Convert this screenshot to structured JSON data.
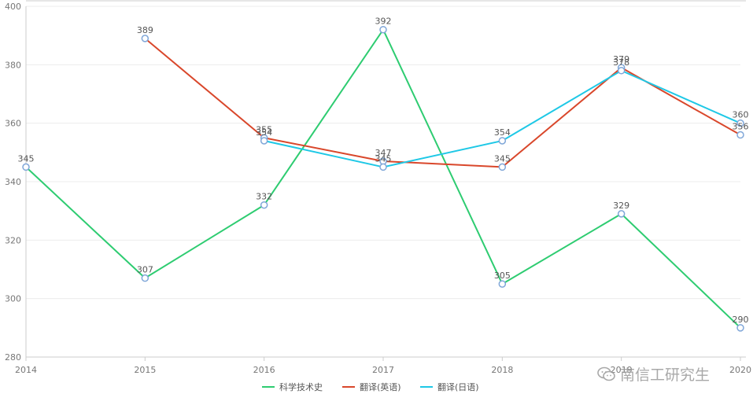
{
  "chart_data": {
    "type": "line",
    "x": [
      "2014",
      "2015",
      "2016",
      "2017",
      "2018",
      "2019",
      "2020"
    ],
    "ylim": [
      280,
      400
    ],
    "yticks": [
      "280",
      "300",
      "320",
      "340",
      "360",
      "380",
      "400"
    ],
    "grid": true,
    "legend_position": "bottom",
    "series": [
      {
        "name": "科学技术史",
        "color": "#2ecc71",
        "values": [
          345,
          307,
          332,
          392,
          305,
          329,
          290
        ]
      },
      {
        "name": "翻译(英语)",
        "color": "#d9472b",
        "values": [
          null,
          389,
          355,
          347,
          345,
          379,
          356
        ]
      },
      {
        "name": "翻译(日语)",
        "color": "#1ec8e6",
        "values": [
          null,
          null,
          354,
          345,
          354,
          378,
          360
        ]
      }
    ]
  },
  "watermark": {
    "text": "南信工研究生",
    "icon": "wechat-icon"
  }
}
